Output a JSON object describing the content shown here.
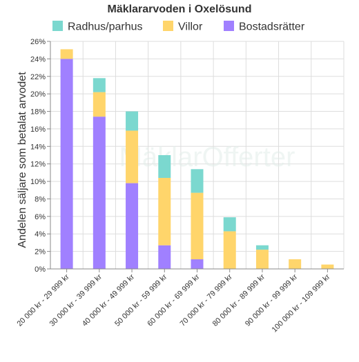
{
  "chart_data": {
    "type": "bar",
    "stacked": true,
    "title": "Mäklararvoden i Oxelösund",
    "xlabel": "",
    "ylabel": "Andelen säljare som betalat arvodet",
    "ylim": [
      0,
      26
    ],
    "y_tick_step": 2,
    "y_tick_suffix": "%",
    "grid": true,
    "legend_position": "top",
    "watermark": "MäklarOfferter",
    "categories": [
      "20 000 kr - 29 999 kr",
      "30 000 kr - 39 999 kr",
      "40 000 kr - 49 999 kr",
      "50 000 kr - 59 999 kr",
      "60 000 kr - 69 999 kr",
      "70 000 kr - 79 999 kr",
      "80 000 kr - 89 999 kr",
      "90 000 kr - 99 999 kr",
      "100 000 kr - 109 999 kr"
    ],
    "series": [
      {
        "name": "Bostadsrätter",
        "color": "#a080ff",
        "values": [
          24.0,
          17.4,
          9.8,
          2.7,
          1.1,
          0,
          0,
          0,
          0
        ]
      },
      {
        "name": "Villor",
        "color": "#ffd56b",
        "values": [
          1.1,
          2.8,
          6.0,
          7.7,
          7.6,
          4.3,
          2.2,
          1.1,
          0.5
        ]
      },
      {
        "name": "Radhus/parhus",
        "color": "#7bd8cf",
        "values": [
          0,
          1.6,
          2.2,
          2.6,
          2.7,
          1.6,
          0.5,
          0,
          0
        ]
      }
    ],
    "legend_order": [
      "Radhus/parhus",
      "Villor",
      "Bostadsrätter"
    ]
  }
}
